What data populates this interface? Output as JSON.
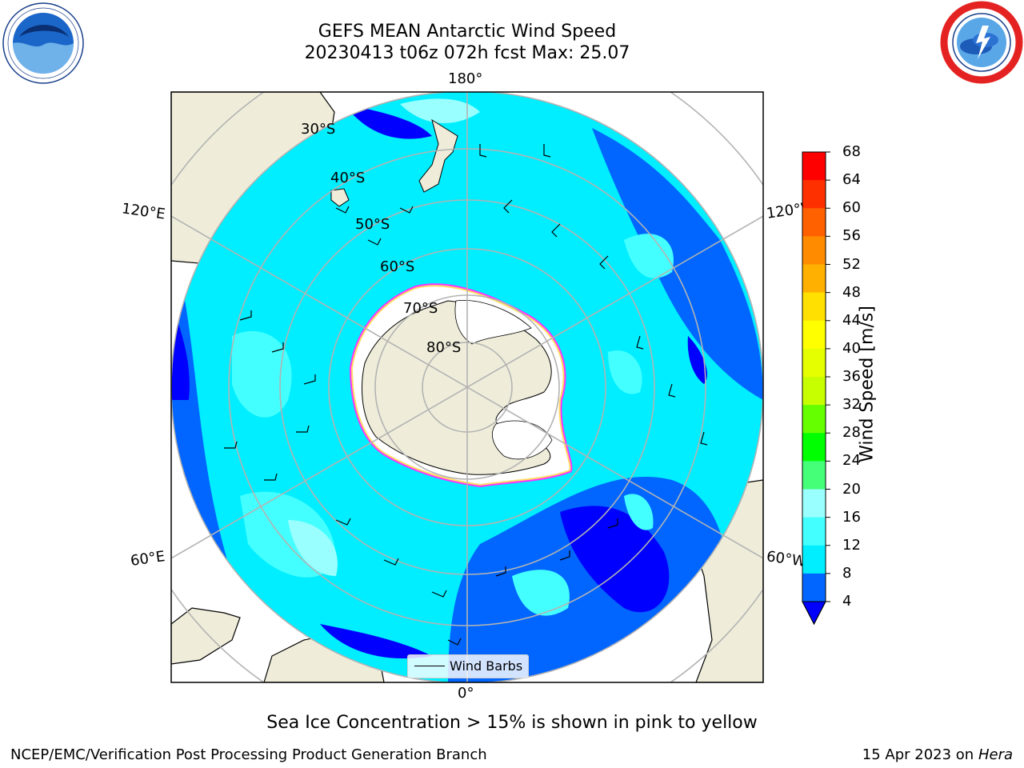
{
  "title": {
    "line1": "GEFS MEAN Antarctic Wind Speed",
    "line2": "20230413 t06z 072h fcst   Max: 25.07"
  },
  "logos": {
    "left": "noaa-logo",
    "right": "nws-logo"
  },
  "map": {
    "projection": "south-polar-stereographic",
    "lon_labels": {
      "top": "180°",
      "bottom": "0°",
      "upper_left": "120°E",
      "lower_left": "60°E",
      "upper_right": "120°W",
      "lower_right": "60°W"
    },
    "lat_labels": [
      "30°S",
      "40°S",
      "50°S",
      "60°S",
      "70°S",
      "80°S"
    ],
    "ocean_colors": {
      "dark_blue": "#0000ff",
      "blue": "#0066ff",
      "cyan": "#00eeff",
      "light_cyan": "#44ffff",
      "pale_cyan": "#99ffff"
    },
    "land_color": "#efedda",
    "ice_edge_colors": [
      "#ff33ff",
      "#ffdd66"
    ]
  },
  "colorbar": {
    "label": "Wind Speed [m/s]",
    "ticks": [
      "68",
      "64",
      "60",
      "56",
      "52",
      "48",
      "44",
      "40",
      "36",
      "32",
      "28",
      "24",
      "20",
      "16",
      "12",
      "8",
      "4"
    ],
    "colors": [
      "#ff0000",
      "#ff3000",
      "#ff6000",
      "#ff8c00",
      "#ffb000",
      "#ffe000",
      "#ffff00",
      "#e6ff00",
      "#c8ff00",
      "#66ff00",
      "#00ff00",
      "#44ff77",
      "#99ffff",
      "#44ffff",
      "#00eeff",
      "#0066ff"
    ],
    "extend_color": "#0000ff"
  },
  "legend": {
    "label": "Wind Barbs"
  },
  "subtitle": "Sea Ice Concentration > 15% is shown in pink to yellow",
  "footer": {
    "credit": "NCEP/EMC/Verification Post Processing Product Generation Branch",
    "date_prefix": "15 Apr 2023 on ",
    "date_machine": "Hera"
  }
}
